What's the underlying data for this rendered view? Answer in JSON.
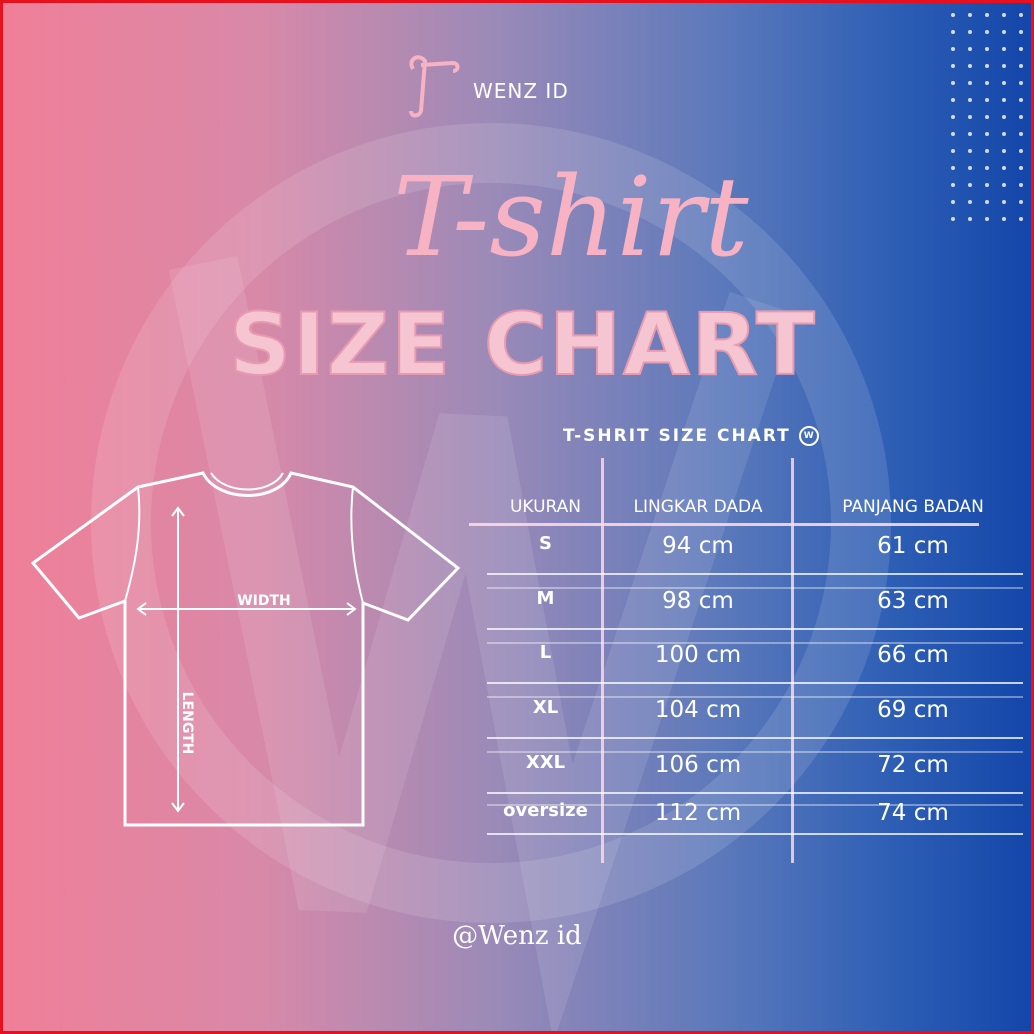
{
  "brand": {
    "name": "WENZ ID",
    "logo_icon": "hanger-logo-icon"
  },
  "headline": {
    "script": "T-shirt",
    "outline": "SIZE CHART"
  },
  "diagram": {
    "width_label": "WIDTH",
    "length_label": "LENGTH"
  },
  "table": {
    "title": "T-SHRIT SIZE CHART",
    "title_icon": "wf-logo-icon",
    "headers": [
      "UKURAN",
      "LINGKAR DADA",
      "PANJANG BADAN"
    ],
    "rows": [
      [
        "S",
        "94 cm",
        "61 cm"
      ],
      [
        "M",
        "98 cm",
        "63 cm"
      ],
      [
        "L",
        "100 cm",
        "66 cm"
      ],
      [
        "XL",
        "104 cm",
        "69 cm"
      ],
      [
        "XXL",
        "106 cm",
        "72 cm"
      ],
      [
        "oversize",
        "112 cm",
        "74 cm"
      ]
    ]
  },
  "footer": {
    "handle": "@Wenz id"
  },
  "colors": {
    "border": "#e8101c",
    "gradient_left": "#f07f98",
    "gradient_right": "#1446aa",
    "accent_pink": "#f7b3c4"
  }
}
